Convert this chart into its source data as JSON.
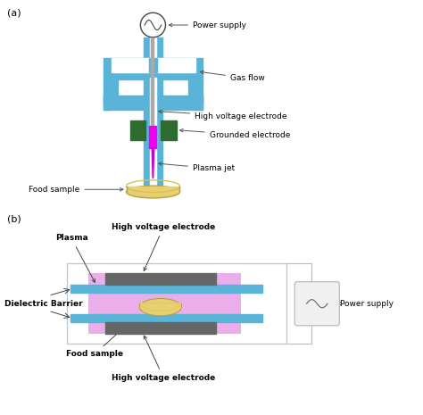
{
  "fig_width": 4.74,
  "fig_height": 4.65,
  "dpi": 100,
  "bg_color": "#ffffff",
  "label_a": "(a)",
  "label_b": "(b)",
  "diagram_a": {
    "tube_color": "#5ab4d8",
    "electrode_gray": "#aaaaaa",
    "ground_green": "#2e6b2e",
    "plasma_pink": "#ee00ee",
    "plasma_jet_color": "#cc00cc",
    "food_fill": "#e8d070",
    "food_edge": "#b8a040",
    "food_rim": "#d4c060",
    "labels": {
      "power_supply": "Power supply",
      "gas_flow": "Gas flow",
      "high_voltage": "High voltage electrode",
      "grounded": "Grounded electrode",
      "plasma_jet": "Plasma jet",
      "food_sample": "Food sample"
    }
  },
  "diagram_b": {
    "tube_color": "#5ab4d8",
    "electrode_dark": "#666666",
    "plasma_color": "#e8a0e8",
    "food_fill": "#e8d070",
    "food_edge": "#b8a040",
    "box_fill": "#f0f0f0",
    "box_edge": "#bbbbbb",
    "wire_color": "#bbbbbb",
    "outer_rect_color": "#aaccee",
    "labels": {
      "plasma": "Plasma",
      "high_voltage_top": "High voltage electrode",
      "dielectric": "Dielectric Barrier",
      "food_sample": "Food sample",
      "high_voltage_bot": "High voltage electrode",
      "power_supply": "Power supply"
    }
  }
}
